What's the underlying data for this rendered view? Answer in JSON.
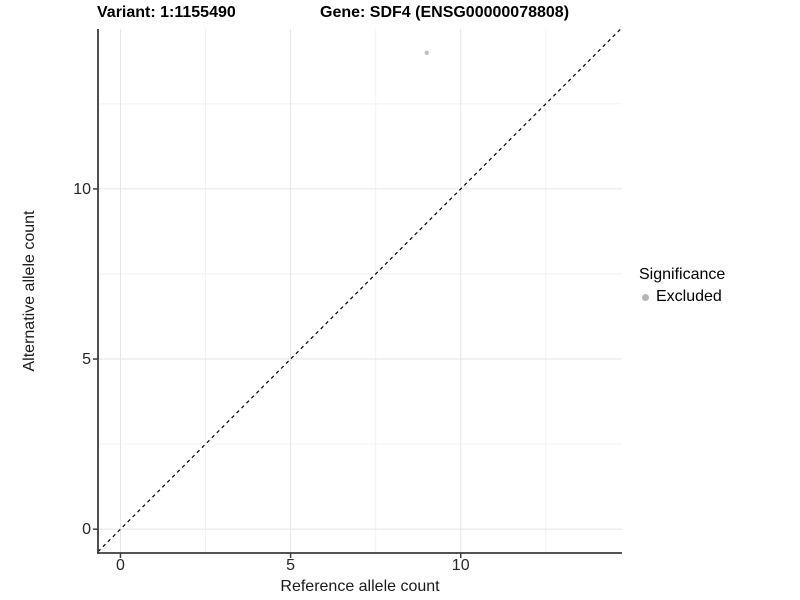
{
  "chart_data": {
    "type": "scatter",
    "title_left": "Variant: 1:1155490",
    "title_right": "Gene: SDF4 (ENSG00000078808)",
    "xlabel": "Reference allele count",
    "ylabel": "Alternative allele count",
    "xlim": [
      -0.66,
      14.74
    ],
    "ylim": [
      -0.7,
      14.7
    ],
    "x_ticks": [
      0,
      5,
      10
    ],
    "y_ticks": [
      0,
      5,
      10
    ],
    "x_minor_ticks": [
      2.5,
      7.5,
      12.5
    ],
    "y_minor_ticks": [
      2.5,
      7.5,
      12.5
    ],
    "grid": "major+minor",
    "identity_line": {
      "type": "abline",
      "slope": 1,
      "intercept": 0,
      "style": "dashed",
      "color": "#000000"
    },
    "series": [
      {
        "name": "Excluded",
        "color": "#bebebe",
        "points": [
          [
            9,
            14
          ]
        ]
      }
    ],
    "legend": {
      "title": "Significance",
      "position": "right",
      "items": [
        {
          "label": "Excluded",
          "color": "#b5b5b5"
        }
      ]
    },
    "colors": {
      "background": "#ffffff",
      "axis": "#3c3c3c",
      "grid_major": "#e5e5e5",
      "grid_minor": "#f2f2f2",
      "tick_text": "#262626"
    }
  }
}
